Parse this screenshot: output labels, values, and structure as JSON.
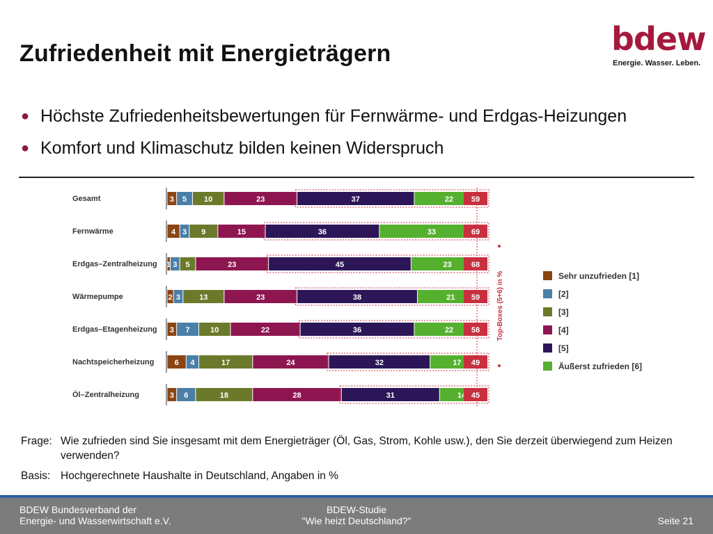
{
  "slide": {
    "title": "Zufriedenheit mit Energieträgern",
    "bullets": [
      "Höchste Zufriedenheitsbewertungen für Fernwärme- und Erdgas-Heizungen",
      "Komfort und Klimaschutz bilden keinen Widerspruch"
    ]
  },
  "logo": {
    "word": "bdew",
    "tagline": "Energie. Wasser. Leben.",
    "color": "#a5193d"
  },
  "chart_data": {
    "type": "bar",
    "stacked": true,
    "orientation": "horizontal",
    "categories": [
      "Gesamt",
      "Fernwärme",
      "Erdgas–Zentralheizung",
      "Wärmepumpe",
      "Erdgas–Etagenheizung",
      "Nachtspeicherheizung",
      "Öl–Zentralheizung"
    ],
    "series": [
      {
        "name": "Sehr unzufrieden [1]",
        "color": "#8b4513",
        "values": [
          3,
          4,
          1,
          2,
          3,
          6,
          3
        ]
      },
      {
        "name": "[2]",
        "color": "#4a7fa8",
        "values": [
          5,
          3,
          3,
          3,
          7,
          4,
          6
        ]
      },
      {
        "name": "[3]",
        "color": "#6b7a2a",
        "values": [
          10,
          9,
          5,
          13,
          10,
          17,
          18
        ]
      },
      {
        "name": "[4]",
        "color": "#8e1650",
        "values": [
          23,
          15,
          23,
          23,
          22,
          24,
          28
        ]
      },
      {
        "name": "[5]",
        "color": "#2c1658",
        "values": [
          37,
          36,
          45,
          38,
          36,
          32,
          31
        ]
      },
      {
        "name": "Äußerst zufrieden [6]",
        "color": "#55b030",
        "values": [
          22,
          33,
          23,
          21,
          22,
          17,
          14
        ]
      }
    ],
    "top_boxes": {
      "label": "Top-Boxes (5+6) in %",
      "color": "#c8303f",
      "values": [
        59,
        69,
        68,
        59,
        58,
        49,
        45
      ]
    },
    "xlim": [
      0,
      100
    ],
    "xlabel": "",
    "ylabel": "",
    "legend_position": "right"
  },
  "notes": {
    "frage_label": "Frage:",
    "frage_text": "Wie zufrieden sind Sie insgesamt mit dem Energieträger (Öl, Gas, Strom, Kohle usw.),  den Sie derzeit überwiegend zum Heizen verwenden?",
    "basis_label": "Basis:",
    "basis_text": "Hochgerechnete Haushalte in Deutschland, Angaben in %"
  },
  "footer": {
    "left_line1": "BDEW Bundesverband der",
    "left_line2": "Energie- und Wasserwirtschaft e.V.",
    "center_line1": "BDEW-Studie",
    "center_line2": "\"Wie heizt Deutschland?\"",
    "right": "Seite 21"
  }
}
